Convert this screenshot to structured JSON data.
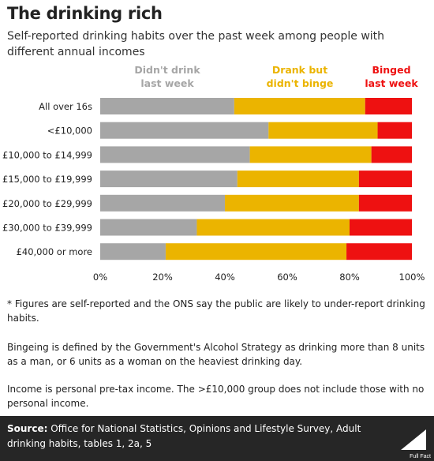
{
  "header": {
    "title": "The drinking rich",
    "subtitle": "Self-reported drinking habits over the past week among people with different annual incomes"
  },
  "colors": {
    "didnt_drink": "#a6a6a6",
    "drank_no_binge": "#ebb400",
    "binged": "#ee1111",
    "footer_bg": "#262626"
  },
  "chart_data": {
    "type": "bar",
    "orientation": "horizontal",
    "stacked": true,
    "categories": [
      "All over 16s",
      "<£10,000",
      "£10,000 to £14,999",
      "£15,000 to £19,999",
      "£20,000 to £29,999",
      "£30,000 to £39,999",
      "£40,000 or more"
    ],
    "series": [
      {
        "name": "Didn't drink last week",
        "label_lines": [
          "Didn't drink",
          "last week"
        ],
        "color": "#a6a6a6",
        "values": [
          43,
          54,
          48,
          44,
          40,
          31,
          21
        ]
      },
      {
        "name": "Drank but didn't binge",
        "label_lines": [
          "Drank but",
          "didn't binge"
        ],
        "color": "#ebb400",
        "values": [
          42,
          35,
          39,
          39,
          43,
          49,
          58
        ]
      },
      {
        "name": "Binged last week",
        "label_lines": [
          "Binged",
          "last week"
        ],
        "color": "#ee1111",
        "values": [
          15,
          11,
          13,
          17,
          17,
          20,
          21
        ]
      }
    ],
    "xlim": [
      0,
      100
    ],
    "ticks": [
      "0%",
      "20%",
      "40%",
      "60%",
      "80%",
      "100%"
    ],
    "grid": false,
    "legend": "top, labels above bars"
  },
  "notes": {
    "note1": "* Figures are self-reported and the ONS say the public are likely to under-report drinking habits.",
    "note2": "Bingeing is defined by the Government's Alcohol Strategy as drinking more than 8 units as a man, or 6 units as a woman on the heaviest drinking day.",
    "note3": "Income is personal pre-tax income. The >£10,000 group does not include those with no personal income."
  },
  "footer": {
    "source_label": "Source:",
    "source_text": "Office for National Statistics, Opinions and Lifestyle Survey, Adult drinking habits, tables 1, 2a, 5",
    "logo_text": "Full Fact"
  }
}
